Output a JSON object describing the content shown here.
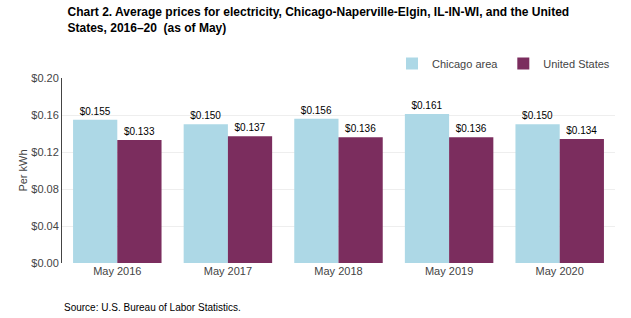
{
  "chart_data": {
    "type": "bar",
    "title": "Chart 2. Average prices for electricity, Chicago-Naperville-Elgin, IL-IN-WI, and the United\nStates, 2016–20  (as of May)",
    "y_label": "Per kWh",
    "annotations": [
      "Source: U.S. Bureau of Labor Statistics."
    ],
    "categories": [
      "May 2016",
      "May 2017",
      "May 2018",
      "May 2019",
      "May 2020"
    ],
    "series": [
      {
        "name": "Chicago area",
        "color": "#add8e6",
        "values": [
          0.155,
          0.15,
          0.156,
          0.161,
          0.15
        ],
        "value_labels": [
          "$0.155",
          "$0.150",
          "$0.156",
          "$0.161",
          "$0.150"
        ]
      },
      {
        "name": "United States",
        "color": "#7b2d5e",
        "values": [
          0.133,
          0.137,
          0.136,
          0.136,
          0.134
        ],
        "value_labels": [
          "$0.133",
          "$0.137",
          "$0.136",
          "$0.136",
          "$0.134"
        ]
      }
    ],
    "ylim": [
      0.0,
      0.2
    ],
    "yticks": [
      {
        "value": 0.0,
        "label": "$0.00"
      },
      {
        "value": 0.04,
        "label": "$0.04"
      },
      {
        "value": 0.08,
        "label": "$0.08"
      },
      {
        "value": 0.12,
        "label": "$0.12"
      },
      {
        "value": 0.16,
        "label": "$0.16"
      },
      {
        "value": 0.2,
        "label": "$0.20"
      }
    ],
    "grid": true,
    "legend": "upper right",
    "data_labels": true
  }
}
